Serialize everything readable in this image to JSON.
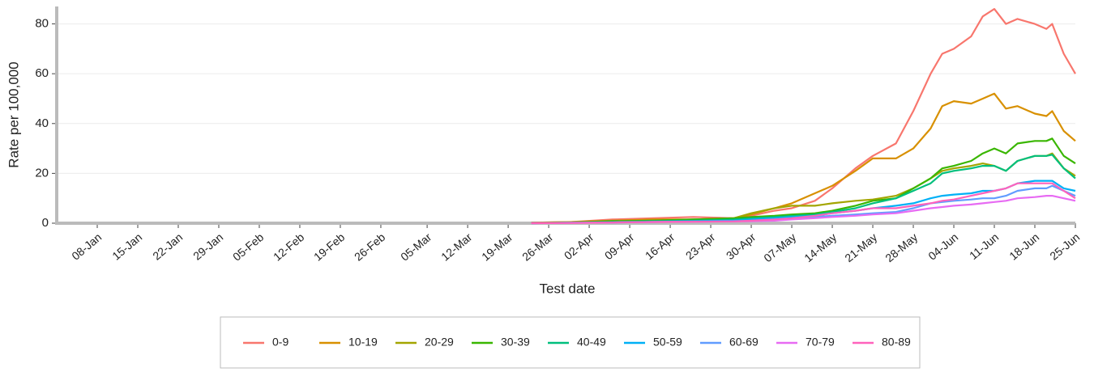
{
  "chart_data": {
    "type": "line",
    "x_label": "Test date",
    "y_label": "Rate per 100,000",
    "x": [
      "23-Mar",
      "30-Mar",
      "06-Apr",
      "13-Apr",
      "20-Apr",
      "27-Apr",
      "30-Apr",
      "04-May",
      "07-May",
      "11-May",
      "14-May",
      "18-May",
      "21-May",
      "25-May",
      "28-May",
      "31-May",
      "02-Jun",
      "04-Jun",
      "07-Jun",
      "09-Jun",
      "11-Jun",
      "13-Jun",
      "15-Jun",
      "18-Jun",
      "20-Jun",
      "21-Jun",
      "23-Jun",
      "25-Jun"
    ],
    "xlim": [
      "01-Jan",
      "25-Jun"
    ],
    "xticks": [
      "08-Jan",
      "15-Jan",
      "22-Jan",
      "29-Jan",
      "05-Feb",
      "12-Feb",
      "19-Feb",
      "26-Feb",
      "05-Mar",
      "12-Mar",
      "19-Mar",
      "26-Mar",
      "02-Apr",
      "09-Apr",
      "16-Apr",
      "23-Apr",
      "30-Apr",
      "07-May",
      "14-May",
      "21-May",
      "28-May",
      "04-Jun",
      "11-Jun",
      "18-Jun",
      "25-Jun"
    ],
    "ylim": [
      0,
      87
    ],
    "yticks": [
      0,
      20,
      40,
      60,
      80
    ],
    "grid": true,
    "legend": "bottom",
    "series": [
      {
        "name": "0-9",
        "color": "#f8766d",
        "values": [
          0.2,
          0.5,
          1.5,
          2,
          2.5,
          2,
          3,
          5,
          6,
          9,
          14,
          22,
          27,
          32,
          45,
          60,
          68,
          70,
          75,
          83,
          86,
          80,
          82,
          80,
          78,
          80,
          68,
          60
        ]
      },
      {
        "name": "10-19",
        "color": "#d89000",
        "values": [
          0.2,
          0.5,
          1,
          1.5,
          1.5,
          2,
          3.5,
          6,
          8,
          12,
          15,
          21,
          26,
          26,
          30,
          38,
          47,
          49,
          48,
          50,
          52,
          46,
          47,
          44,
          43,
          45,
          37,
          33
        ]
      },
      {
        "name": "20-29",
        "color": "#a3a500",
        "values": [
          0.1,
          0.3,
          0.8,
          1,
          1.5,
          2,
          4,
          6,
          7,
          7,
          8,
          9,
          9.5,
          11,
          14,
          18,
          21,
          22,
          23,
          24,
          23,
          21,
          25,
          27,
          27,
          28,
          22,
          19
        ]
      },
      {
        "name": "30-39",
        "color": "#39b600",
        "values": [
          0.1,
          0.3,
          0.8,
          1,
          1.5,
          2,
          2.5,
          3,
          3.5,
          4,
          5,
          7,
          9,
          10,
          14,
          18,
          22,
          23,
          25,
          28,
          30,
          28,
          32,
          33,
          33,
          34,
          27,
          24
        ]
      },
      {
        "name": "40-49",
        "color": "#00bf7d",
        "values": [
          0.1,
          0.2,
          0.5,
          0.8,
          1,
          1.5,
          2,
          2.5,
          3,
          3.5,
          4.5,
          6,
          8,
          10,
          13,
          16,
          20,
          21,
          22,
          23,
          23,
          21,
          25,
          27,
          27,
          27.5,
          22,
          18
        ]
      },
      {
        "name": "50-59",
        "color": "#00b0f6",
        "values": [
          0,
          0.2,
          0.4,
          0.6,
          0.8,
          1,
          1.5,
          2,
          2.5,
          3,
          4,
          5,
          6,
          7,
          8,
          10,
          11,
          11.5,
          12,
          13,
          13,
          14,
          16,
          17,
          17,
          17,
          14,
          13
        ]
      },
      {
        "name": "60-69",
        "color": "#619cff",
        "values": [
          0,
          0.2,
          0.3,
          0.5,
          0.7,
          0.8,
          1,
          1.5,
          2,
          2.5,
          3,
          3.5,
          4,
          4.5,
          6,
          8,
          8.5,
          9,
          9.5,
          10,
          10,
          11,
          13,
          14,
          14,
          15,
          13,
          11
        ]
      },
      {
        "name": "70-79",
        "color": "#e76bf3",
        "values": [
          0,
          0.1,
          0.3,
          0.5,
          0.6,
          0.7,
          0.8,
          1,
          1.5,
          2,
          2.5,
          3,
          3.5,
          4,
          5,
          6,
          6.5,
          7,
          7.5,
          8,
          8.5,
          9,
          10,
          10.5,
          11,
          11,
          10,
          9
        ]
      },
      {
        "name": "80-89",
        "color": "#ff62bc",
        "values": [
          0,
          0.1,
          0.3,
          0.5,
          0.6,
          0.7,
          1,
          1.5,
          2,
          3,
          4,
          5,
          6,
          6,
          7,
          8,
          9,
          9.5,
          11,
          12,
          13,
          14,
          16,
          16,
          16,
          16,
          13,
          10
        ]
      }
    ]
  }
}
